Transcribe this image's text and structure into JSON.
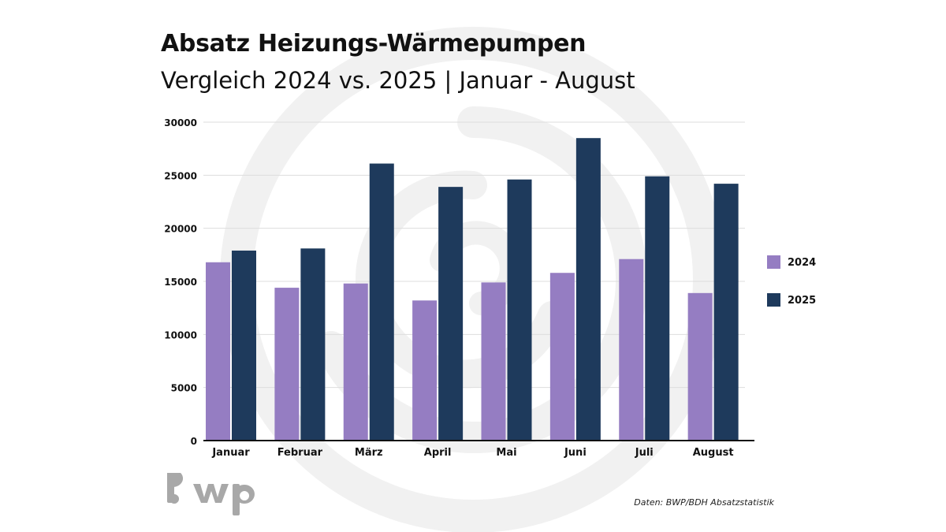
{
  "title": "Absatz Heizungs-Wärmepumpen",
  "subtitle": "Vergleich 2024 vs. 2025 | Januar - August",
  "source": "Daten: BWP/BDH Absatzstatistik",
  "logo_text": "bwp",
  "chart_data": {
    "type": "bar",
    "categories": [
      "Januar",
      "Februar",
      "März",
      "April",
      "Mai",
      "Juni",
      "Juli",
      "August"
    ],
    "series": [
      {
        "name": "2024",
        "color": "#957dc2",
        "values": [
          16800,
          14400,
          14800,
          13200,
          14900,
          15800,
          17100,
          13900
        ]
      },
      {
        "name": "2025",
        "color": "#1e3a5c",
        "values": [
          17900,
          18100,
          26100,
          23900,
          24600,
          28500,
          24900,
          24200
        ]
      }
    ],
    "ylim": [
      0,
      30000
    ],
    "yticks": [
      0,
      5000,
      10000,
      15000,
      20000,
      25000,
      30000
    ],
    "grid": true,
    "legend_position": "right"
  }
}
